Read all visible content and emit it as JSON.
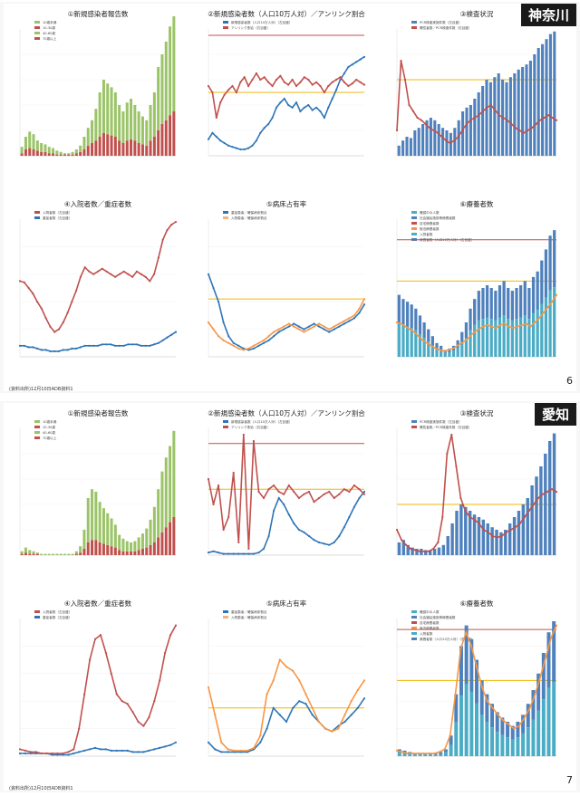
{
  "panels": [
    {
      "region": "神奈川",
      "page_number": "6",
      "source": "(資料出所)12月10日ADB資料1",
      "charts": [
        {
          "title": "①新規感染者報告数",
          "type": "bar",
          "legend": [
            "10歳未満",
            "10-30歳",
            "40-60歳",
            "70歳以上"
          ],
          "series_colors": [
            "#9bc468",
            "#c0504d"
          ],
          "stack_green": [
            0.05,
            0.1,
            0.13,
            0.12,
            0.08,
            0.07,
            0.06,
            0.05,
            0.04,
            0.03,
            0.02,
            0.01,
            0.01,
            0.02,
            0.03,
            0.05,
            0.1,
            0.14,
            0.18,
            0.25,
            0.35,
            0.42,
            0.4,
            0.38,
            0.35,
            0.28,
            0.25,
            0.3,
            0.32,
            0.28,
            0.25,
            0.22,
            0.2,
            0.28,
            0.35,
            0.5,
            0.55,
            0.62,
            0.7,
            0.75
          ],
          "stack_red": [
            0.02,
            0.05,
            0.06,
            0.05,
            0.04,
            0.03,
            0.03,
            0.02,
            0.02,
            0.01,
            0.01,
            0.01,
            0.01,
            0.01,
            0.02,
            0.03,
            0.05,
            0.08,
            0.1,
            0.12,
            0.15,
            0.18,
            0.17,
            0.16,
            0.15,
            0.12,
            0.1,
            0.12,
            0.13,
            0.12,
            0.1,
            0.09,
            0.08,
            0.12,
            0.15,
            0.2,
            0.25,
            0.28,
            0.32,
            0.35
          ]
        },
        {
          "title": "②新規感染者数（人口10万人対）／アンリンク割合",
          "type": "line",
          "legend": [
            "新規感染者数（人口10万人対）（左目盛）",
            "アンリンク割合（右目盛）"
          ],
          "series_colors": [
            "#2e75b6",
            "#c0504d"
          ],
          "line_blue": [
            0.13,
            0.18,
            0.15,
            0.12,
            0.1,
            0.08,
            0.07,
            0.06,
            0.05,
            0.05,
            0.06,
            0.08,
            0.12,
            0.18,
            0.22,
            0.25,
            0.3,
            0.38,
            0.42,
            0.45,
            0.4,
            0.38,
            0.42,
            0.35,
            0.38,
            0.4,
            0.36,
            0.38,
            0.35,
            0.3,
            0.38,
            0.45,
            0.52,
            0.6,
            0.65,
            0.7,
            0.72,
            0.74,
            0.76,
            0.78
          ],
          "line_red": [
            0.55,
            0.5,
            0.3,
            0.42,
            0.48,
            0.52,
            0.55,
            0.5,
            0.58,
            0.62,
            0.55,
            0.6,
            0.65,
            0.6,
            0.62,
            0.58,
            0.55,
            0.6,
            0.63,
            0.58,
            0.56,
            0.6,
            0.55,
            0.58,
            0.62,
            0.6,
            0.56,
            0.58,
            0.55,
            0.5,
            0.55,
            0.58,
            0.6,
            0.62,
            0.58,
            0.55,
            0.57,
            0.6,
            0.58,
            0.56
          ],
          "ref_line": 0.5,
          "top_line": 0.95
        },
        {
          "title": "③検査状況",
          "type": "bar",
          "legend": [
            "PCR検査実施件数（左目盛）",
            "陽性者数／PCR検査件数（右目盛）"
          ],
          "series_colors": [
            "#4f81bd",
            "#c0504d"
          ],
          "bars": [
            0.08,
            0.12,
            0.15,
            0.14,
            0.2,
            0.22,
            0.25,
            0.28,
            0.3,
            0.28,
            0.25,
            0.22,
            0.2,
            0.18,
            0.22,
            0.28,
            0.35,
            0.38,
            0.4,
            0.45,
            0.5,
            0.55,
            0.6,
            0.58,
            0.62,
            0.65,
            0.6,
            0.58,
            0.62,
            0.65,
            0.68,
            0.7,
            0.72,
            0.75,
            0.8,
            0.85,
            0.88,
            0.92,
            0.96,
            0.98
          ],
          "line_red": [
            0.2,
            0.75,
            0.6,
            0.4,
            0.35,
            0.3,
            0.28,
            0.25,
            0.22,
            0.2,
            0.18,
            0.15,
            0.12,
            0.1,
            0.12,
            0.15,
            0.2,
            0.25,
            0.28,
            0.3,
            0.32,
            0.35,
            0.38,
            0.4,
            0.36,
            0.32,
            0.3,
            0.28,
            0.25,
            0.22,
            0.2,
            0.18,
            0.2,
            0.22,
            0.25,
            0.28,
            0.3,
            0.32,
            0.3,
            0.28
          ],
          "ref_line": 0.6
        },
        {
          "title": "④入院者数／重症者数",
          "type": "line",
          "legend": [
            "入院者数（左目盛）",
            "重症者数（左目盛）"
          ],
          "series_colors": [
            "#c0504d",
            "#2e75b6"
          ],
          "line_red": [
            0.55,
            0.54,
            0.5,
            0.46,
            0.4,
            0.35,
            0.28,
            0.22,
            0.18,
            0.2,
            0.25,
            0.32,
            0.4,
            0.48,
            0.58,
            0.65,
            0.62,
            0.6,
            0.62,
            0.64,
            0.62,
            0.6,
            0.58,
            0.6,
            0.62,
            0.6,
            0.58,
            0.62,
            0.6,
            0.58,
            0.55,
            0.6,
            0.72,
            0.85,
            0.92,
            0.96,
            0.98
          ],
          "line_blue": [
            0.08,
            0.08,
            0.07,
            0.07,
            0.06,
            0.05,
            0.05,
            0.04,
            0.04,
            0.04,
            0.05,
            0.05,
            0.06,
            0.06,
            0.07,
            0.08,
            0.08,
            0.08,
            0.08,
            0.09,
            0.09,
            0.09,
            0.08,
            0.08,
            0.08,
            0.09,
            0.09,
            0.09,
            0.08,
            0.08,
            0.08,
            0.09,
            0.1,
            0.12,
            0.14,
            0.16,
            0.18
          ]
        },
        {
          "title": "⑤病床占有率",
          "type": "line",
          "legend": [
            "重症患者／確保病床割合",
            "入院患者／確保病床割合"
          ],
          "series_colors": [
            "#2e75b6",
            "#f4b183"
          ],
          "line_blue": [
            0.6,
            0.5,
            0.4,
            0.25,
            0.15,
            0.1,
            0.08,
            0.06,
            0.05,
            0.06,
            0.08,
            0.1,
            0.12,
            0.15,
            0.18,
            0.2,
            0.22,
            0.24,
            0.22,
            0.2,
            0.22,
            0.24,
            0.22,
            0.2,
            0.18,
            0.2,
            0.22,
            0.24,
            0.26,
            0.28,
            0.32,
            0.38
          ],
          "line_orange": [
            0.25,
            0.2,
            0.15,
            0.12,
            0.1,
            0.08,
            0.06,
            0.05,
            0.06,
            0.08,
            0.1,
            0.12,
            0.15,
            0.18,
            0.2,
            0.22,
            0.24,
            0.22,
            0.2,
            0.18,
            0.2,
            0.22,
            0.24,
            0.22,
            0.2,
            0.22,
            0.24,
            0.26,
            0.28,
            0.3,
            0.35,
            0.42
          ],
          "ref_line": 0.42
        },
        {
          "title": "⑥療養者数",
          "type": "bar",
          "legend": [
            "確認中の人数",
            "社会福祉施設等療養者数",
            "自宅療養者数",
            "宿泊療養者数",
            "入院者数",
            "療養者数（人口10万人対）（右目盛）"
          ],
          "series_colors": [
            "#4bacc6",
            "#4f81bd",
            "#c0504d",
            "#f79646"
          ],
          "bars": [
            0.45,
            0.42,
            0.4,
            0.38,
            0.35,
            0.3,
            0.25,
            0.2,
            0.15,
            0.1,
            0.08,
            0.05,
            0.06,
            0.08,
            0.12,
            0.18,
            0.25,
            0.35,
            0.42,
            0.48,
            0.5,
            0.52,
            0.5,
            0.48,
            0.52,
            0.55,
            0.5,
            0.48,
            0.5,
            0.52,
            0.55,
            0.5,
            0.58,
            0.62,
            0.7,
            0.78,
            0.88,
            0.92
          ],
          "line_orange": [
            0.25,
            0.24,
            0.22,
            0.2,
            0.18,
            0.15,
            0.12,
            0.1,
            0.08,
            0.06,
            0.05,
            0.04,
            0.05,
            0.06,
            0.08,
            0.1,
            0.12,
            0.15,
            0.18,
            0.2,
            0.22,
            0.23,
            0.22,
            0.21,
            0.23,
            0.24,
            0.22,
            0.21,
            0.22,
            0.23,
            0.24,
            0.22,
            0.25,
            0.28,
            0.32,
            0.36,
            0.4,
            0.45
          ],
          "ref_line_red": 0.85,
          "ref_line_orange": 0.55
        }
      ]
    },
    {
      "region": "愛知",
      "page_number": "7",
      "source": "(資料出所)12月10日ADB資料1",
      "charts": [
        {
          "title": "①新規感染者報告数",
          "type": "bar",
          "legend": [
            "10歳未満",
            "10-30歳",
            "40-60歳",
            "70歳以上"
          ],
          "series_colors": [
            "#9bc468",
            "#c0504d"
          ],
          "stack_green": [
            0.02,
            0.04,
            0.03,
            0.02,
            0.01,
            0.01,
            0.01,
            0.01,
            0.01,
            0.01,
            0.01,
            0.01,
            0.01,
            0.01,
            0.02,
            0.05,
            0.15,
            0.35,
            0.4,
            0.38,
            0.32,
            0.28,
            0.25,
            0.22,
            0.18,
            0.12,
            0.1,
            0.08,
            0.07,
            0.08,
            0.1,
            0.12,
            0.15,
            0.2,
            0.28,
            0.38,
            0.48,
            0.55,
            0.6,
            0.68
          ],
          "stack_red": [
            0.01,
            0.02,
            0.01,
            0.01,
            0.01,
            0.0,
            0.0,
            0.0,
            0.0,
            0.0,
            0.0,
            0.0,
            0.0,
            0.0,
            0.01,
            0.02,
            0.05,
            0.1,
            0.12,
            0.12,
            0.1,
            0.09,
            0.08,
            0.07,
            0.06,
            0.04,
            0.03,
            0.03,
            0.03,
            0.03,
            0.04,
            0.05,
            0.06,
            0.08,
            0.1,
            0.14,
            0.18,
            0.22,
            0.26,
            0.3
          ]
        },
        {
          "title": "②新規感染者数（人口10万人対）／アンリンク割合",
          "type": "line",
          "legend": [
            "新規感染者数（人口10万人対）（左目盛）",
            "アンリンク割合（右目盛）"
          ],
          "series_colors": [
            "#2e75b6",
            "#c0504d"
          ],
          "line_blue": [
            0.02,
            0.03,
            0.02,
            0.01,
            0.01,
            0.01,
            0.01,
            0.01,
            0.01,
            0.01,
            0.02,
            0.05,
            0.15,
            0.35,
            0.45,
            0.4,
            0.32,
            0.25,
            0.2,
            0.18,
            0.15,
            0.12,
            0.1,
            0.09,
            0.08,
            0.1,
            0.15,
            0.22,
            0.3,
            0.38,
            0.45,
            0.5
          ],
          "line_red": [
            0.6,
            0.4,
            0.55,
            0.2,
            0.3,
            0.65,
            0.1,
            0.95,
            0.05,
            0.9,
            0.5,
            0.45,
            0.52,
            0.55,
            0.5,
            0.48,
            0.55,
            0.5,
            0.45,
            0.48,
            0.5,
            0.42,
            0.45,
            0.48,
            0.5,
            0.45,
            0.48,
            0.52,
            0.5,
            0.55,
            0.52,
            0.48
          ],
          "ref_line": 0.52,
          "top_line": 0.88
        },
        {
          "title": "③検査状況",
          "type": "bar",
          "legend": [
            "PCR検査実施件数（左目盛）",
            "陽性者数／PCR検査件数（右目盛）"
          ],
          "series_colors": [
            "#4f81bd",
            "#c0504d"
          ],
          "bars": [
            0.1,
            0.12,
            0.08,
            0.06,
            0.05,
            0.05,
            0.04,
            0.04,
            0.05,
            0.06,
            0.08,
            0.15,
            0.25,
            0.35,
            0.4,
            0.38,
            0.35,
            0.32,
            0.3,
            0.28,
            0.25,
            0.22,
            0.2,
            0.18,
            0.2,
            0.25,
            0.3,
            0.35,
            0.4,
            0.45,
            0.55,
            0.62,
            0.7,
            0.8,
            0.9,
            0.96
          ],
          "line_red": [
            0.2,
            0.12,
            0.08,
            0.05,
            0.04,
            0.03,
            0.03,
            0.03,
            0.05,
            0.1,
            0.3,
            0.8,
            0.95,
            0.7,
            0.45,
            0.35,
            0.3,
            0.28,
            0.25,
            0.2,
            0.18,
            0.15,
            0.14,
            0.15,
            0.18,
            0.2,
            0.22,
            0.25,
            0.3,
            0.35,
            0.4,
            0.45,
            0.48,
            0.5,
            0.52,
            0.5
          ],
          "ref_line": 0.4
        },
        {
          "title": "④入院者数／重症者数",
          "type": "line",
          "legend": [
            "入院者数（左目盛）",
            "重症者数（左目盛）"
          ],
          "series_colors": [
            "#c0504d",
            "#2e75b6"
          ],
          "line_red": [
            0.05,
            0.04,
            0.03,
            0.03,
            0.02,
            0.02,
            0.02,
            0.02,
            0.02,
            0.03,
            0.05,
            0.2,
            0.45,
            0.7,
            0.85,
            0.88,
            0.75,
            0.6,
            0.45,
            0.4,
            0.38,
            0.32,
            0.25,
            0.22,
            0.28,
            0.4,
            0.55,
            0.75,
            0.88,
            0.95
          ],
          "line_blue": [
            0.02,
            0.02,
            0.02,
            0.02,
            0.02,
            0.02,
            0.01,
            0.01,
            0.01,
            0.01,
            0.02,
            0.03,
            0.04,
            0.05,
            0.06,
            0.05,
            0.05,
            0.04,
            0.04,
            0.04,
            0.04,
            0.03,
            0.03,
            0.03,
            0.04,
            0.05,
            0.06,
            0.07,
            0.08,
            0.1
          ]
        },
        {
          "title": "⑤病床占有率",
          "type": "line",
          "legend": [
            "重症患者／確保病床割合",
            "入院患者／確保病床割合"
          ],
          "series_colors": [
            "#2e75b6",
            "#f4b183"
          ],
          "line_blue": [
            0.1,
            0.05,
            0.03,
            0.03,
            0.03,
            0.03,
            0.03,
            0.05,
            0.1,
            0.2,
            0.35,
            0.3,
            0.25,
            0.35,
            0.4,
            0.38,
            0.3,
            0.25,
            0.2,
            0.18,
            0.22,
            0.25,
            0.3,
            0.35,
            0.42
          ],
          "line_orange": [
            0.5,
            0.3,
            0.1,
            0.05,
            0.04,
            0.04,
            0.04,
            0.06,
            0.15,
            0.45,
            0.55,
            0.7,
            0.65,
            0.62,
            0.55,
            0.45,
            0.35,
            0.25,
            0.2,
            0.18,
            0.2,
            0.3,
            0.4,
            0.48,
            0.55
          ],
          "ref_line": 0.35
        },
        {
          "title": "⑥療養者数",
          "type": "bar",
          "legend": [
            "確認中の人数",
            "社会福祉施設等療養者数",
            "自宅療養者数",
            "宿泊療養者数",
            "入院者数",
            "療養者数（人口10万人対）（右目盛）"
          ],
          "series_colors": [
            "#4bacc6",
            "#4f81bd",
            "#c0504d",
            "#f79646"
          ],
          "bars": [
            0.05,
            0.04,
            0.03,
            0.02,
            0.02,
            0.02,
            0.02,
            0.02,
            0.03,
            0.05,
            0.15,
            0.45,
            0.8,
            0.95,
            0.85,
            0.7,
            0.55,
            0.45,
            0.38,
            0.32,
            0.28,
            0.25,
            0.22,
            0.25,
            0.3,
            0.38,
            0.48,
            0.6,
            0.75,
            0.9,
            0.98
          ],
          "line_orange": [
            0.04,
            0.03,
            0.02,
            0.02,
            0.02,
            0.02,
            0.02,
            0.02,
            0.03,
            0.05,
            0.15,
            0.45,
            0.78,
            0.9,
            0.8,
            0.65,
            0.5,
            0.4,
            0.35,
            0.3,
            0.26,
            0.23,
            0.2,
            0.22,
            0.28,
            0.35,
            0.45,
            0.58,
            0.72,
            0.86,
            0.95
          ],
          "ref_line_red": 0.92,
          "ref_line_orange": 0.55
        }
      ]
    }
  ]
}
